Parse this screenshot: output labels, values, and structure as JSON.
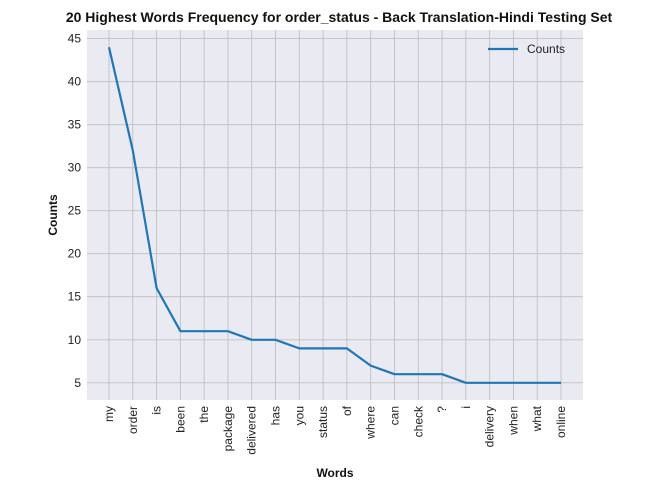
{
  "chart_data": {
    "type": "line",
    "title": "20 Highest Words Frequency for order_status - Back Translation-Hindi Testing Set",
    "xlabel": "Words",
    "ylabel": "Counts",
    "categories": [
      "my",
      "order",
      "is",
      "been",
      "the",
      "package",
      "delivered",
      "has",
      "you",
      "status",
      "of",
      "where",
      "can",
      "check",
      "?",
      "i",
      "delivery",
      "when",
      "what",
      "online"
    ],
    "series": [
      {
        "name": "Counts",
        "color": "#1f77b4",
        "values": [
          44,
          32,
          16,
          11,
          11,
          11,
          10,
          10,
          9,
          9,
          9,
          7,
          6,
          6,
          6,
          5,
          5,
          5,
          5,
          5
        ]
      }
    ],
    "ylim": [
      3,
      46
    ],
    "yticks": [
      5,
      10,
      15,
      20,
      25,
      30,
      35,
      40,
      45
    ],
    "grid": true,
    "legend_position": "top-right",
    "background_color": "#eaeaf2",
    "grid_color": "#c0c0c0"
  }
}
